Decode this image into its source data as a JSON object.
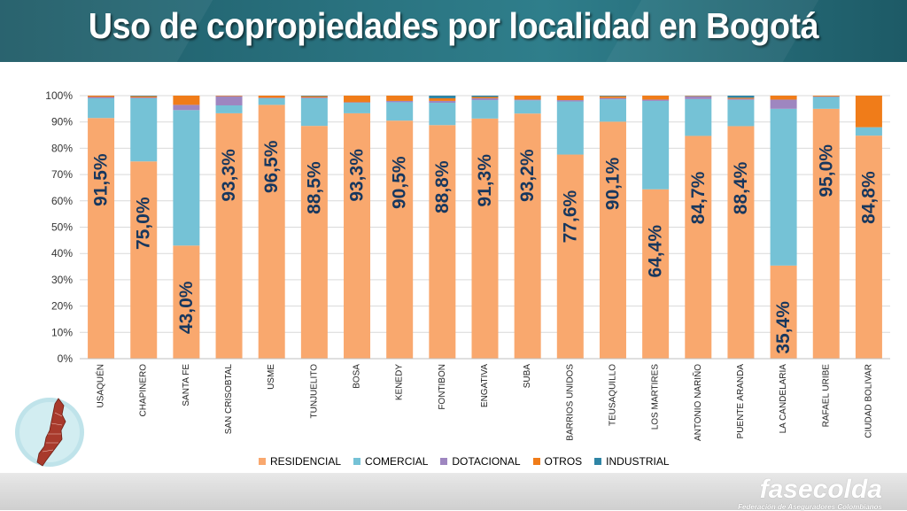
{
  "page": {
    "title": "Uso de copropiedades por localidad en Bogotá"
  },
  "logo": {
    "name": "fasecolda",
    "tagline": "Federación de Aseguradores Colombianos"
  },
  "map_icon": {
    "name": "bogota-map-icon"
  },
  "chart_data": {
    "type": "bar",
    "stacked": true,
    "ylim": [
      0,
      100
    ],
    "yticks": [
      "0%",
      "10%",
      "20%",
      "30%",
      "40%",
      "50%",
      "60%",
      "70%",
      "80%",
      "90%",
      "100%"
    ],
    "categories": [
      "USAQUÉN",
      "CHAPINERO",
      "SANTA FE",
      "SAN CRISOBTAL",
      "USME",
      "TUNJUELITO",
      "BOSA",
      "KENEDY",
      "FONTIBON",
      "ENGATIVA",
      "SUBA",
      "BARRIOS UNIDOS",
      "TEUSAQUILLO",
      "LOS MARTIRES",
      "ANTONIO NARIÑO",
      "PUENTE ARANDA",
      "LA CANDELARIA",
      "RAFAEL URIBE",
      "CIUDAD BOLIVAR"
    ],
    "data_labels": [
      "91,5%",
      "75,0%",
      "43,0%",
      "93,3%",
      "96,5%",
      "88,5%",
      "93,3%",
      "90,5%",
      "88,8%",
      "91,3%",
      "93,2%",
      "77,6%",
      "90,1%",
      "64,4%",
      "84,7%",
      "88,4%",
      "35,4%",
      "95,0%",
      "84,8%"
    ],
    "legend_position": "bottom",
    "grid": true,
    "series": [
      {
        "name": "RESIDENCIAL",
        "color": "#f9a86e",
        "values": [
          91.5,
          75.0,
          43.0,
          93.3,
          96.5,
          88.5,
          93.3,
          90.5,
          88.8,
          91.3,
          93.2,
          77.6,
          90.1,
          64.4,
          84.7,
          88.4,
          35.4,
          95.0,
          84.8
        ]
      },
      {
        "name": "COMERCIAL",
        "color": "#75c2d6",
        "values": [
          7.5,
          24.0,
          51.5,
          3.0,
          2.5,
          10.5,
          4.0,
          7.0,
          8.5,
          7.0,
          5.0,
          20.2,
          8.5,
          33.6,
          14.0,
          10.0,
          59.6,
          4.5,
          3.2
        ]
      },
      {
        "name": "DOTACIONAL",
        "color": "#9e86c0",
        "values": [
          0.5,
          0.3,
          2.0,
          3.5,
          0.2,
          0.3,
          0.2,
          0.5,
          0.7,
          0.7,
          0.3,
          0.5,
          0.5,
          0.5,
          1.0,
          0.4,
          3.5,
          0.2,
          0.0
        ]
      },
      {
        "name": "OTROS",
        "color": "#f07c19",
        "values": [
          0.5,
          0.5,
          3.5,
          0.2,
          0.8,
          0.5,
          2.5,
          2.0,
          1.0,
          0.5,
          1.5,
          1.7,
          0.7,
          1.5,
          0.2,
          0.4,
          1.5,
          0.3,
          12.0
        ]
      },
      {
        "name": "INDUSTRIAL",
        "color": "#2f85a5",
        "values": [
          0.0,
          0.2,
          0.0,
          0.0,
          0.0,
          0.2,
          0.0,
          0.0,
          1.0,
          0.5,
          0.0,
          0.0,
          0.2,
          0.0,
          0.1,
          0.8,
          0.0,
          0.0,
          0.0
        ]
      }
    ]
  }
}
